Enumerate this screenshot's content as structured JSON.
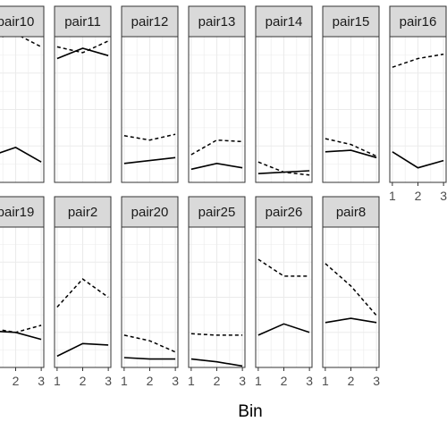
{
  "chart_data": {
    "type": "line",
    "xlabel": "Bin",
    "x": [
      1,
      2,
      3
    ],
    "x_ticks": [
      "1",
      "2",
      "3"
    ],
    "ylim": [
      0,
      1
    ],
    "grid": true,
    "legend": "none",
    "line_styles": [
      "dashed",
      "solid"
    ],
    "colors": {
      "panel_bg": "#ffffff",
      "grid": "#ebebeb",
      "strip_bg": "#d9d9d9",
      "line": "#000000",
      "border": "#333333"
    },
    "panels": [
      {
        "label": "pair10",
        "dashed": [
          0.98,
          1.02,
          0.93
        ],
        "solid": [
          0.18,
          0.24,
          0.14
        ]
      },
      {
        "label": "pair11",
        "dashed": [
          0.93,
          0.89,
          0.97
        ],
        "solid": [
          0.85,
          0.92,
          0.87
        ]
      },
      {
        "label": "pair12",
        "dashed": [
          0.32,
          0.29,
          0.33
        ],
        "solid": [
          0.13,
          0.15,
          0.17
        ]
      },
      {
        "label": "pair13",
        "dashed": [
          0.19,
          0.29,
          0.28
        ],
        "solid": [
          0.09,
          0.13,
          0.1
        ]
      },
      {
        "label": "pair14",
        "dashed": [
          0.14,
          0.07,
          0.05
        ],
        "solid": [
          0.06,
          0.07,
          0.08
        ]
      },
      {
        "label": "pair15",
        "dashed": [
          0.3,
          0.26,
          0.18
        ],
        "solid": [
          0.21,
          0.22,
          0.17
        ]
      },
      {
        "label": "pair16",
        "dashed": [
          0.79,
          0.85,
          0.88
        ],
        "solid": [
          0.21,
          0.1,
          0.15
        ]
      },
      {
        "label": "pair19",
        "dashed": [
          0.28,
          0.25,
          0.3
        ],
        "solid": [
          0.26,
          0.25,
          0.2
        ]
      },
      {
        "label": "pair2",
        "dashed": [
          0.43,
          0.63,
          0.5
        ],
        "solid": [
          0.08,
          0.17,
          0.16
        ]
      },
      {
        "label": "pair20",
        "dashed": [
          0.23,
          0.19,
          0.11
        ],
        "solid": [
          0.07,
          0.06,
          0.06
        ]
      },
      {
        "label": "pair25",
        "dashed": [
          0.24,
          0.23,
          0.23
        ],
        "solid": [
          0.06,
          0.04,
          0.01
        ]
      },
      {
        "label": "pair26",
        "dashed": [
          0.77,
          0.65,
          0.65
        ],
        "solid": [
          0.23,
          0.31,
          0.25
        ]
      },
      {
        "label": "pair8",
        "dashed": [
          0.74,
          0.58,
          0.37
        ],
        "solid": [
          0.32,
          0.35,
          0.32
        ]
      }
    ]
  }
}
